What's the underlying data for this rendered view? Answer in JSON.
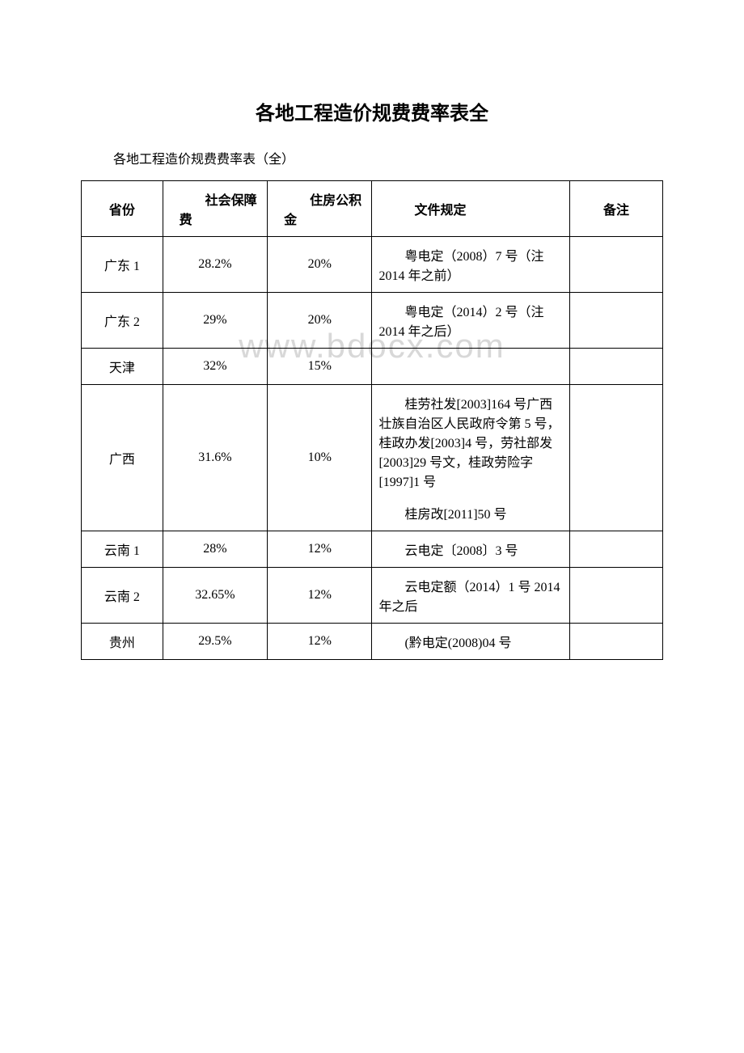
{
  "title": "各地工程造价规费费率表全",
  "subtitle": "各地工程造价规费费率表（全）",
  "watermark": "www.bdocx.com",
  "headers": {
    "province": "省份",
    "social": "社会保障费",
    "housing": "住房公积金",
    "doc": "文件规定",
    "remark": "备注"
  },
  "rows": [
    {
      "province": "广东 1",
      "social": "28.2%",
      "housing": "20%",
      "doc": "粤电定（2008）7 号（注 2014 年之前）",
      "remark": ""
    },
    {
      "province": "广东 2",
      "social": "29%",
      "housing": "20%",
      "doc": "粤电定（2014）2 号（注 2014 年之后）",
      "remark": ""
    },
    {
      "province": "天津",
      "social": "32%",
      "housing": "15%",
      "doc": "",
      "remark": ""
    },
    {
      "province": "广西",
      "social": "31.6%",
      "housing": "10%",
      "doc_multi": {
        "p1": "桂劳社发[2003]164 号广西壮族自治区人民政府令第 5 号，桂政办发[2003]4 号，劳社部发[2003]29 号文，桂政劳险字[1997]1 号",
        "p2": "桂房改[2011]50 号"
      },
      "remark": ""
    },
    {
      "province": "云南 1",
      "social": "28%",
      "housing": "12%",
      "doc": "云电定〔2008〕3 号",
      "remark": ""
    },
    {
      "province": "云南 2",
      "social": "32.65%",
      "housing": "12%",
      "doc": "云电定额（2014）1 号 2014 年之后",
      "remark": ""
    },
    {
      "province": "贵州",
      "social": "29.5%",
      "housing": "12%",
      "doc": "(黔电定(2008)04 号",
      "remark": ""
    }
  ]
}
